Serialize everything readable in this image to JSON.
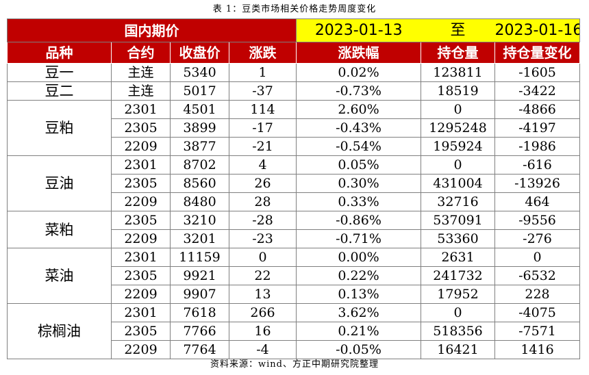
{
  "caption": "表 1：豆类市场相关价格走势周度变化",
  "source": "资料来源：wind、方正中期研究院整理",
  "header": {
    "domestic_label": "国内期价",
    "date_from": "2023-01-13",
    "to_label": "至",
    "date_to": "2023-01-16"
  },
  "columns": [
    "品种",
    "合约",
    "收盘价",
    "涨跌",
    "涨跌幅",
    "持仓量",
    "持仓量变化"
  ],
  "groups": [
    {
      "name": "豆一",
      "rows": [
        {
          "contract": "主连",
          "close": "5340",
          "change": "1",
          "pct": "0.02%",
          "oi": "123811",
          "oi_change": "-1605"
        }
      ]
    },
    {
      "name": "豆二",
      "rows": [
        {
          "contract": "主连",
          "close": "5017",
          "change": "-37",
          "pct": "-0.73%",
          "oi": "18519",
          "oi_change": "-3422"
        }
      ]
    },
    {
      "name": "豆粕",
      "rows": [
        {
          "contract": "2301",
          "close": "4501",
          "change": "114",
          "pct": "2.60%",
          "oi": "0",
          "oi_change": "-4866"
        },
        {
          "contract": "2305",
          "close": "3899",
          "change": "-17",
          "pct": "-0.43%",
          "oi": "1295248",
          "oi_change": "-4197"
        },
        {
          "contract": "2209",
          "close": "3877",
          "change": "-21",
          "pct": "-0.54%",
          "oi": "195924",
          "oi_change": "-1986"
        }
      ]
    },
    {
      "name": "豆油",
      "rows": [
        {
          "contract": "2301",
          "close": "8702",
          "change": "4",
          "pct": "0.05%",
          "oi": "0",
          "oi_change": "-616"
        },
        {
          "contract": "2305",
          "close": "8560",
          "change": "26",
          "pct": "0.30%",
          "oi": "431004",
          "oi_change": "-13926"
        },
        {
          "contract": "2209",
          "close": "8480",
          "change": "28",
          "pct": "0.33%",
          "oi": "32716",
          "oi_change": "464"
        }
      ]
    },
    {
      "name": "菜粕",
      "rows": [
        {
          "contract": "2305",
          "close": "3210",
          "change": "-28",
          "pct": "-0.86%",
          "oi": "537091",
          "oi_change": "-9556"
        },
        {
          "contract": "2209",
          "close": "3201",
          "change": "-23",
          "pct": "-0.71%",
          "oi": "53360",
          "oi_change": "-276"
        }
      ]
    },
    {
      "name": "菜油",
      "rows": [
        {
          "contract": "2301",
          "close": "11159",
          "change": "0",
          "pct": "0.00%",
          "oi": "2631",
          "oi_change": "0"
        },
        {
          "contract": "2305",
          "close": "9921",
          "change": "22",
          "pct": "0.22%",
          "oi": "241732",
          "oi_change": "-6532"
        },
        {
          "contract": "2209",
          "close": "9907",
          "change": "13",
          "pct": "0.13%",
          "oi": "17952",
          "oi_change": "228"
        }
      ]
    },
    {
      "name": "棕榈油",
      "rows": [
        {
          "contract": "2301",
          "close": "7618",
          "change": "266",
          "pct": "3.62%",
          "oi": "0",
          "oi_change": "-4075"
        },
        {
          "contract": "2305",
          "close": "7766",
          "change": "16",
          "pct": "0.21%",
          "oi": "518356",
          "oi_change": "-7571"
        },
        {
          "contract": "2209",
          "close": "7764",
          "change": "-4",
          "pct": "-0.05%",
          "oi": "16421",
          "oi_change": "1416"
        }
      ]
    }
  ]
}
